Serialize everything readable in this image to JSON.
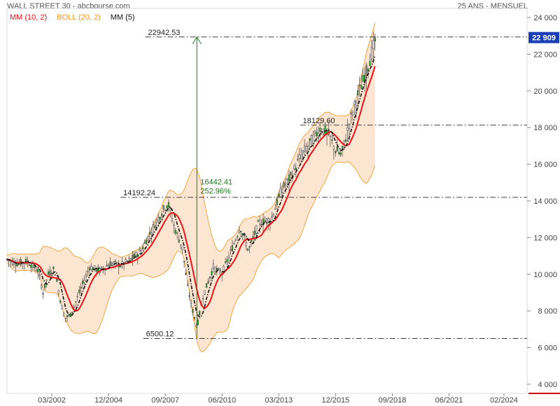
{
  "header": {
    "title": "WALL STREET 30 - abcbourse.com",
    "period": "25 ANS - MENSUEL"
  },
  "legend": [
    {
      "label": "MM (10, 2)",
      "color": "#e8141a"
    },
    {
      "label": "BOLL (20, 2)",
      "color": "#f0961e"
    },
    {
      "label": "MM (5)",
      "color": "#111111"
    }
  ],
  "chart_data": {
    "type": "candlestick",
    "ylim": [
      3500,
      24500
    ],
    "y_ticks": [
      "4 000",
      "6 000",
      "8 000",
      "10 000",
      "12 000",
      "14 000",
      "16 000",
      "18 000",
      "20 000",
      "22 000",
      "24 000"
    ],
    "y_tick_values": [
      4000,
      6000,
      8000,
      10000,
      12000,
      14000,
      16000,
      18000,
      20000,
      22000,
      24000
    ],
    "x_ticks": [
      "03/2002",
      "12/2004",
      "09/2007",
      "06/2010",
      "03/2013",
      "12/2015",
      "09/2018",
      "06/2021",
      "02/2024"
    ],
    "x_tick_years": [
      2002.17,
      2004.92,
      2007.67,
      2010.42,
      2013.17,
      2015.92,
      2018.67,
      2021.42,
      2024.08
    ],
    "last_value": "22 909",
    "last_value_num": 22909,
    "levels": [
      {
        "label": "22942.53",
        "value": 22942.53,
        "from_year": 2006.7
      },
      {
        "label": "18129.60",
        "value": 18129.6,
        "from_year": 2014.2
      },
      {
        "label": "14192.24",
        "value": 14192.24,
        "from_year": 2005.5
      },
      {
        "label": "6500.12",
        "value": 6500.12,
        "from_year": 2006.6
      }
    ],
    "arrow": {
      "year": 2009.2,
      "from": 6500.12,
      "to": 22942.53,
      "label1": "16442.41",
      "label2": "252.96%"
    },
    "price_path": [
      [
        2000.0,
        10800
      ],
      [
        2000.5,
        10600
      ],
      [
        2001.0,
        10700
      ],
      [
        2001.5,
        10200
      ],
      [
        2001.75,
        9000
      ],
      [
        2002.0,
        10000
      ],
      [
        2002.3,
        10300
      ],
      [
        2002.6,
        8500
      ],
      [
        2002.8,
        7600
      ],
      [
        2003.1,
        7800
      ],
      [
        2003.5,
        9000
      ],
      [
        2004.0,
        10400
      ],
      [
        2004.5,
        10200
      ],
      [
        2005.0,
        10600
      ],
      [
        2005.5,
        10500
      ],
      [
        2006.0,
        10800
      ],
      [
        2006.5,
        11300
      ],
      [
        2007.0,
        12400
      ],
      [
        2007.5,
        13400
      ],
      [
        2007.8,
        13900
      ],
      [
        2008.1,
        12600
      ],
      [
        2008.5,
        11400
      ],
      [
        2008.75,
        9300
      ],
      [
        2009.0,
        8000
      ],
      [
        2009.2,
        7100
      ],
      [
        2009.5,
        8800
      ],
      [
        2010.0,
        10400
      ],
      [
        2010.4,
        10000
      ],
      [
        2010.8,
        11100
      ],
      [
        2011.3,
        12600
      ],
      [
        2011.7,
        11300
      ],
      [
        2012.2,
        12800
      ],
      [
        2012.8,
        13000
      ],
      [
        2013.3,
        14600
      ],
      [
        2013.8,
        15400
      ],
      [
        2014.2,
        16400
      ],
      [
        2014.7,
        17200
      ],
      [
        2015.2,
        18000
      ],
      [
        2015.6,
        17600
      ],
      [
        2015.9,
        16800
      ],
      [
        2016.2,
        16500
      ],
      [
        2016.6,
        18300
      ],
      [
        2017.0,
        19800
      ],
      [
        2017.4,
        21000
      ],
      [
        2017.75,
        22400
      ],
      [
        2017.9,
        22909
      ]
    ]
  }
}
